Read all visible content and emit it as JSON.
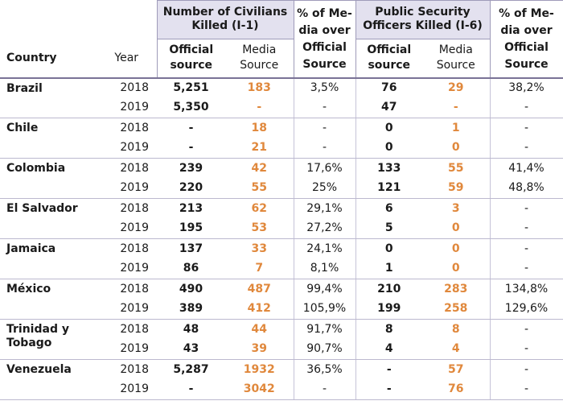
{
  "header": {
    "country_label": "Country",
    "year_label": "Year",
    "group1_title": "Number of Civilians Killed (I-1)",
    "group1_pct": "% of Me- dia over Official Source",
    "group2_title": "Public Security Officers Killed (I-6)",
    "group2_pct": "% of Me- dia over Official Source",
    "official_label": "Official source",
    "media_label": "Media Source"
  },
  "colors": {
    "header_band": "#e3e1ef",
    "media_accent": "#e0883c",
    "rule": "#7a7396"
  },
  "rows": [
    {
      "country": "Brazil",
      "year": "2018",
      "civ_official": "5,251",
      "civ_media": "183",
      "civ_pct": "3,5%",
      "off_official": "76",
      "off_media": "29",
      "off_pct": "38,2%"
    },
    {
      "country": "",
      "year": "2019",
      "civ_official": "5,350",
      "civ_media": "-",
      "civ_pct": "-",
      "off_official": "47",
      "off_media": "-",
      "off_pct": "-"
    },
    {
      "country": "Chile",
      "year": "2018",
      "civ_official": "-",
      "civ_media": "18",
      "civ_pct": "-",
      "off_official": "0",
      "off_media": "1",
      "off_pct": "-"
    },
    {
      "country": "",
      "year": "2019",
      "civ_official": "-",
      "civ_media": "21",
      "civ_pct": "-",
      "off_official": "0",
      "off_media": "0",
      "off_pct": "-"
    },
    {
      "country": "Colombia",
      "year": "2018",
      "civ_official": "239",
      "civ_media": "42",
      "civ_pct": "17,6%",
      "off_official": "133",
      "off_media": "55",
      "off_pct": "41,4%"
    },
    {
      "country": "",
      "year": "2019",
      "civ_official": "220",
      "civ_media": "55",
      "civ_pct": "25%",
      "off_official": "121",
      "off_media": "59",
      "off_pct": "48,8%"
    },
    {
      "country": "El Salvador",
      "year": "2018",
      "civ_official": "213",
      "civ_media": "62",
      "civ_pct": "29,1%",
      "off_official": "6",
      "off_media": "3",
      "off_pct": "-"
    },
    {
      "country": "",
      "year": "2019",
      "civ_official": "195",
      "civ_media": "53",
      "civ_pct": "27,2%",
      "off_official": "5",
      "off_media": "0",
      "off_pct": "-"
    },
    {
      "country": "Jamaica",
      "year": "2018",
      "civ_official": "137",
      "civ_media": "33",
      "civ_pct": "24,1%",
      "off_official": "0",
      "off_media": "0",
      "off_pct": "-"
    },
    {
      "country": "",
      "year": "2019",
      "civ_official": "86",
      "civ_media": "7",
      "civ_pct": "8,1%",
      "off_official": "1",
      "off_media": "0",
      "off_pct": "-"
    },
    {
      "country": "México",
      "year": "2018",
      "civ_official": "490",
      "civ_media": "487",
      "civ_pct": "99,4%",
      "off_official": "210",
      "off_media": "283",
      "off_pct": "134,8%"
    },
    {
      "country": "",
      "year": "2019",
      "civ_official": "389",
      "civ_media": "412",
      "civ_pct": "105,9%",
      "off_official": "199",
      "off_media": "258",
      "off_pct": "129,6%"
    },
    {
      "country": "Trinidad y Tobago",
      "year": "2018",
      "civ_official": "48",
      "civ_media": "44",
      "civ_pct": "91,7%",
      "off_official": "8",
      "off_media": "8",
      "off_pct": "-"
    },
    {
      "country": "",
      "year": "2019",
      "civ_official": "43",
      "civ_media": "39",
      "civ_pct": "90,7%",
      "off_official": "4",
      "off_media": "4",
      "off_pct": "-"
    },
    {
      "country": "Venezuela",
      "year": "2018",
      "civ_official": "5,287",
      "civ_media": "1932",
      "civ_pct": "36,5%",
      "off_official": "-",
      "off_media": "57",
      "off_pct": "-"
    },
    {
      "country": "",
      "year": "2019",
      "civ_official": "-",
      "civ_media": "3042",
      "civ_pct": "-",
      "off_official": "-",
      "off_media": "76",
      "off_pct": "-"
    }
  ]
}
